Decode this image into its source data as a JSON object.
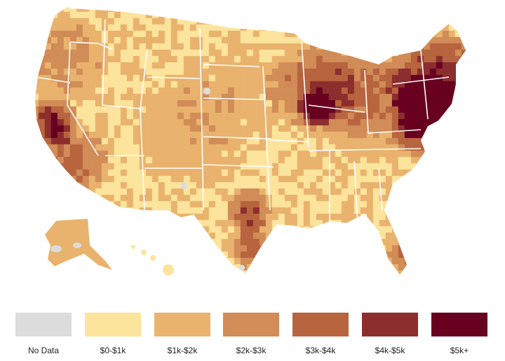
{
  "colors": {
    "no_data": "#dcdcdc",
    "c0": "#fde49c",
    "c1": "#e9b36e",
    "c2": "#d18c57",
    "c3": "#b8643f",
    "c4": "#8c2e2e",
    "c5": "#680020",
    "border": "#ffffff"
  },
  "legend": {
    "items": [
      {
        "label": "No Data",
        "color_key": "no_data"
      },
      {
        "label": "$0-$1k",
        "color_key": "c0"
      },
      {
        "label": "$1k-$2k",
        "color_key": "c1"
      },
      {
        "label": "$2k-$3k",
        "color_key": "c2"
      },
      {
        "label": "$3k-$4k",
        "color_key": "c3"
      },
      {
        "label": "$4k-$5k",
        "color_key": "c4"
      },
      {
        "label": "$5k+",
        "color_key": "c5"
      }
    ]
  }
}
